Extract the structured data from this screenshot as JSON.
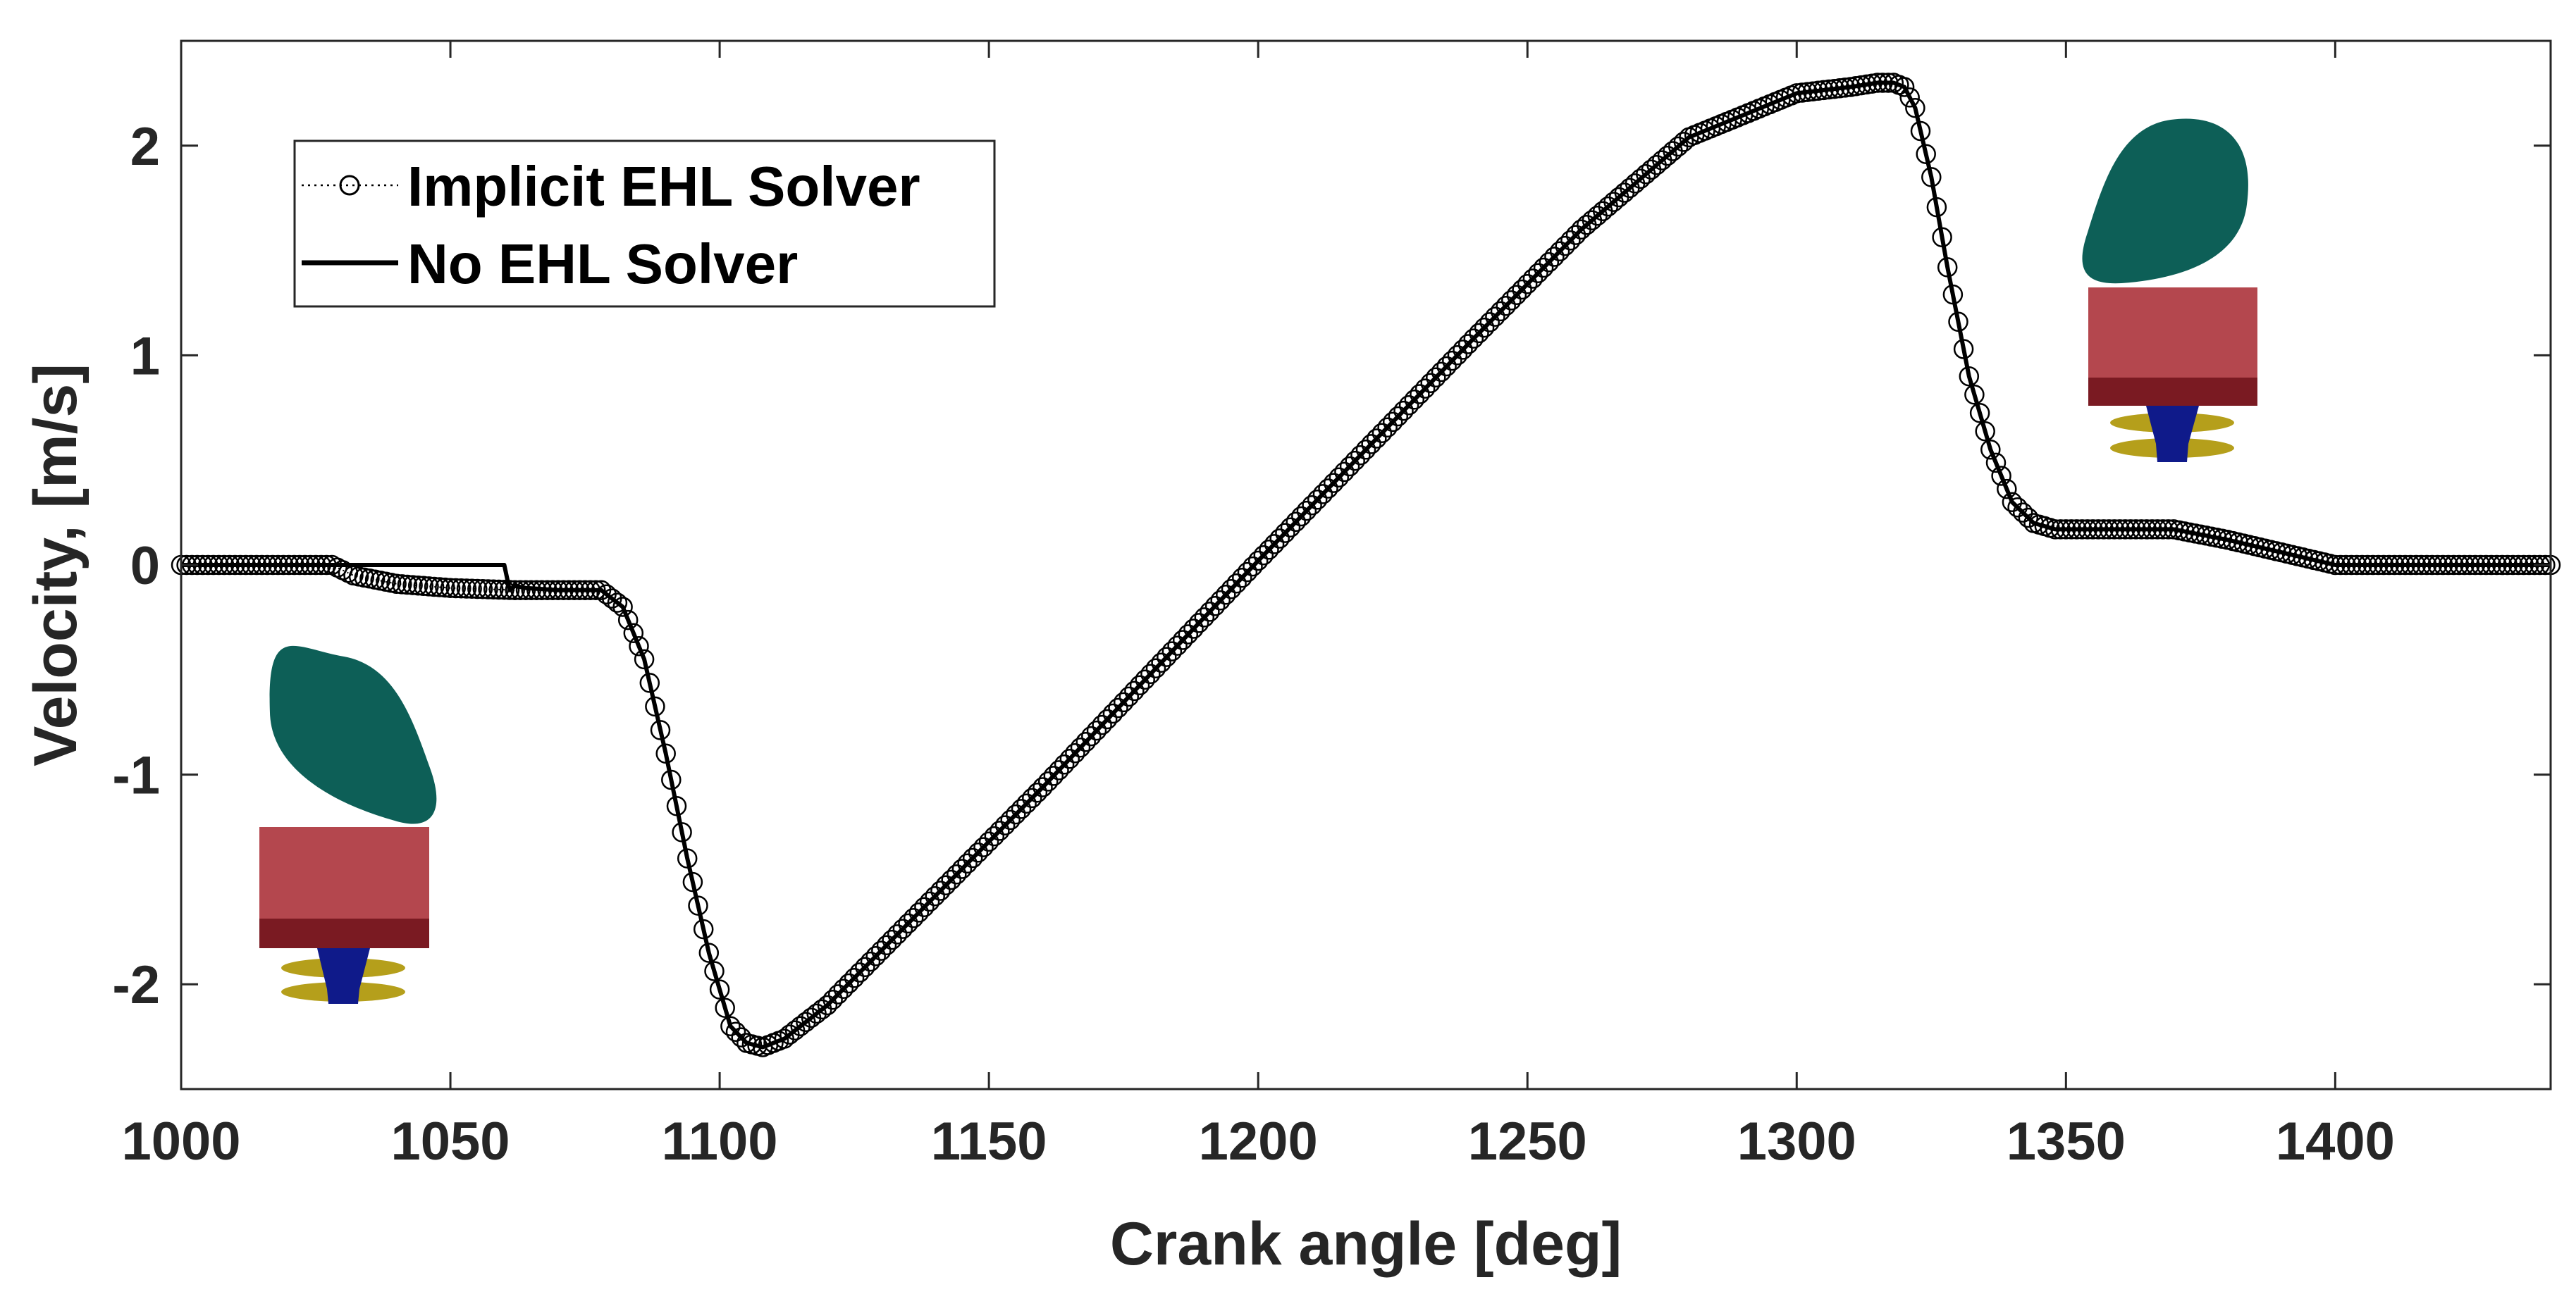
{
  "chart_data": {
    "type": "line",
    "xlabel": "Crank angle [deg]",
    "ylabel": "Velocity, [m/s]",
    "xlim": [
      1000,
      1440
    ],
    "ylim": [
      -2.5,
      2.5
    ],
    "xticks": [
      1000,
      1050,
      1100,
      1150,
      1200,
      1250,
      1300,
      1350,
      1400
    ],
    "yticks": [
      -2,
      -1,
      0,
      1,
      2
    ],
    "grid": false,
    "legend_position": "top-left",
    "series": [
      {
        "name": "Implicit EHL Solver",
        "style": "dotted line with open circle markers",
        "color": "#000000",
        "x": [
          1000,
          1010,
          1020,
          1028,
          1032,
          1040,
          1050,
          1062,
          1070,
          1078,
          1082,
          1086,
          1090,
          1094,
          1098,
          1102,
          1105,
          1108,
          1112,
          1120,
          1140,
          1160,
          1180,
          1200,
          1220,
          1240,
          1260,
          1280,
          1300,
          1310,
          1315,
          1318,
          1320,
          1322,
          1325,
          1328,
          1332,
          1336,
          1340,
          1344,
          1348,
          1355,
          1365,
          1370,
          1380,
          1390,
          1395,
          1400,
          1410,
          1420,
          1440
        ],
        "y": [
          0.0,
          0.0,
          0.0,
          0.0,
          -0.05,
          -0.09,
          -0.11,
          -0.12,
          -0.12,
          -0.12,
          -0.2,
          -0.45,
          -0.9,
          -1.4,
          -1.85,
          -2.2,
          -2.28,
          -2.3,
          -2.26,
          -2.1,
          -1.58,
          -1.06,
          -0.52,
          0.02,
          0.55,
          1.08,
          1.6,
          2.04,
          2.25,
          2.28,
          2.3,
          2.3,
          2.28,
          2.18,
          1.85,
          1.42,
          0.9,
          0.55,
          0.3,
          0.2,
          0.17,
          0.17,
          0.17,
          0.17,
          0.12,
          0.06,
          0.03,
          0.0,
          0.0,
          0.0,
          0.0
        ]
      },
      {
        "name": "No EHL Solver",
        "style": "solid line",
        "color": "#000000",
        "x": [
          1000,
          1010,
          1020,
          1030,
          1040,
          1050,
          1060,
          1061,
          1062,
          1064,
          1070,
          1078,
          1082,
          1086,
          1090,
          1094,
          1098,
          1102,
          1105,
          1108,
          1112,
          1120,
          1140,
          1160,
          1180,
          1200,
          1220,
          1240,
          1260,
          1280,
          1300,
          1310,
          1315,
          1318,
          1320,
          1322,
          1325,
          1328,
          1332,
          1336,
          1340,
          1344,
          1348,
          1355,
          1365,
          1370,
          1380,
          1390,
          1395,
          1400,
          1410,
          1420,
          1440
        ],
        "y": [
          0.0,
          0.0,
          0.0,
          0.0,
          0.0,
          0.0,
          0.0,
          -0.12,
          -0.1,
          -0.11,
          -0.12,
          -0.12,
          -0.2,
          -0.45,
          -0.9,
          -1.4,
          -1.85,
          -2.2,
          -2.28,
          -2.3,
          -2.26,
          -2.1,
          -1.58,
          -1.06,
          -0.52,
          0.02,
          0.55,
          1.08,
          1.6,
          2.04,
          2.25,
          2.28,
          2.3,
          2.3,
          2.28,
          2.18,
          1.85,
          1.42,
          0.9,
          0.55,
          0.3,
          0.2,
          0.17,
          0.17,
          0.17,
          0.17,
          0.12,
          0.06,
          0.03,
          0.0,
          0.0,
          0.0,
          0.0
        ]
      }
    ]
  },
  "colors": {
    "cam": "#0d5f57",
    "tappet_top": "#b4474e",
    "tappet_bottom": "#7a1a22",
    "spring": "#b59f1b",
    "stem": "#0f1a8a",
    "axes": "#262626"
  },
  "insets": [
    {
      "name": "cam-follower-inset-left",
      "cam_orientation": "lobe-down-right"
    },
    {
      "name": "cam-follower-inset-right",
      "cam_orientation": "lobe-down-left"
    }
  ]
}
